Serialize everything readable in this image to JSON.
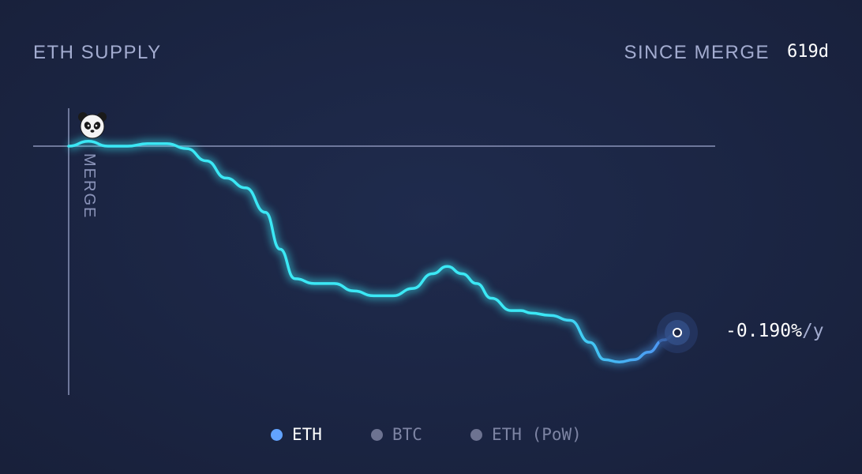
{
  "header": {
    "title": "ETH SUPPLY",
    "since_label": "SINCE MERGE",
    "days": "619d"
  },
  "rate": {
    "value": "-0.190%",
    "unit": "/y"
  },
  "merge_label": "MERGE",
  "legend": [
    {
      "label": "ETH",
      "color": "#62a3ff",
      "active": true
    },
    {
      "label": "BTC",
      "color": "#6d7391",
      "active": false
    },
    {
      "label": "ETH (PoW)",
      "color": "#6d7391",
      "active": false
    }
  ],
  "colors": {
    "line_start": "#3be8f5",
    "line_end": "#4f8bf2",
    "axis": "#8a93b8"
  },
  "chart_data": {
    "type": "line",
    "title": "ETH SUPPLY",
    "xlabel": "",
    "ylabel": "",
    "annotations": [
      "MERGE",
      "-0.190%/y"
    ],
    "x_unit": "days since merge",
    "xlim": [
      0,
      619
    ],
    "series": [
      {
        "name": "ETH",
        "x": [
          0,
          20,
          40,
          60,
          80,
          100,
          120,
          140,
          160,
          180,
          200,
          215,
          230,
          250,
          270,
          290,
          310,
          330,
          350,
          370,
          385,
          400,
          415,
          430,
          450,
          460,
          470,
          490,
          510,
          530,
          545,
          560,
          575,
          590,
          605,
          619
        ],
        "values": [
          0.0,
          0.02,
          0.0,
          0.0,
          0.01,
          0.01,
          -0.01,
          -0.06,
          -0.13,
          -0.17,
          -0.27,
          -0.42,
          -0.54,
          -0.56,
          -0.56,
          -0.59,
          -0.61,
          -0.61,
          -0.58,
          -0.52,
          -0.49,
          -0.52,
          -0.56,
          -0.62,
          -0.67,
          -0.67,
          -0.68,
          -0.69,
          -0.71,
          -0.8,
          -0.87,
          -0.88,
          -0.87,
          -0.84,
          -0.79,
          -0.76
        ]
      }
    ]
  }
}
